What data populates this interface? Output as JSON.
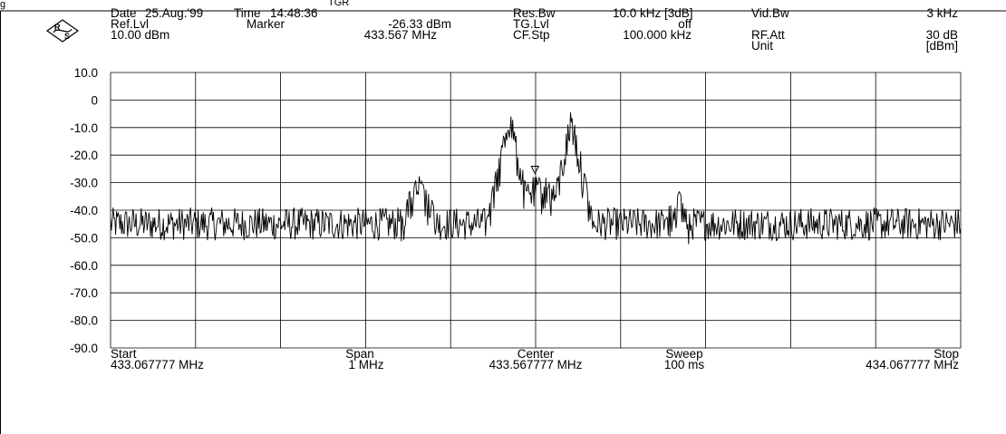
{
  "top_fragments": [
    "g",
    "TGR"
  ],
  "header": {
    "date_label": "Date",
    "date_value": "25.Aug.'99",
    "time_label": "Time",
    "time_value": "14:48:36",
    "ref_label": "Ref.Lvl",
    "ref_value": "10.00 dBm",
    "marker_label": "Marker",
    "marker_level": "-26.33 dBm",
    "marker_freq": "433.567 MHz",
    "resbw_label": "Res.Bw",
    "resbw_value": "10.0 kHz [3dB]",
    "tglvl_label": "TG.Lvl",
    "tglvl_value": "off",
    "cfstp_label": "CF.Stp",
    "cfstp_value": "100.000 kHz",
    "vidbw_label": "Vid.Bw",
    "vidbw_value": "3 kHz",
    "rfatt_label": "RF.Att",
    "rfatt_value": "30 dB",
    "unit_label": "Unit",
    "unit_value": "[dBm]"
  },
  "footer": {
    "start_label": "Start",
    "start_value": "433.067777 MHz",
    "span_label": "Span",
    "span_value": "1 MHz",
    "center_label": "Center",
    "center_value": "433.567777 MHz",
    "sweep_label": "Sweep",
    "sweep_value": "100 ms",
    "stop_label": "Stop",
    "stop_value": "434.067777 MHz"
  },
  "colors": {
    "trace": "#000000",
    "grid": "#000000",
    "background": "#ffffff"
  },
  "chart_data": {
    "type": "line",
    "x_range_mhz": [
      433.067777,
      434.067777
    ],
    "ylim": [
      -90,
      10
    ],
    "y_ticks": [
      "10.0",
      "0",
      "-10.0",
      "-20.0",
      "-30.0",
      "-40.0",
      "-50.0",
      "-60.0",
      "-70.0",
      "-80.0",
      "-90.0"
    ],
    "grid": true,
    "x_divisions": 10,
    "noise_floor_dbm": -45,
    "peaks": [
      {
        "x_mhz": 433.537,
        "y_dbm": -1
      },
      {
        "x_mhz": 433.61,
        "y_dbm": -2
      }
    ],
    "shoulders": [
      {
        "x_mhz": 433.43,
        "y_dbm": -27
      },
      {
        "x_mhz": 433.735,
        "y_dbm": -32
      }
    ],
    "marker": {
      "x_mhz": 433.567,
      "y_dbm": -26.33
    }
  }
}
